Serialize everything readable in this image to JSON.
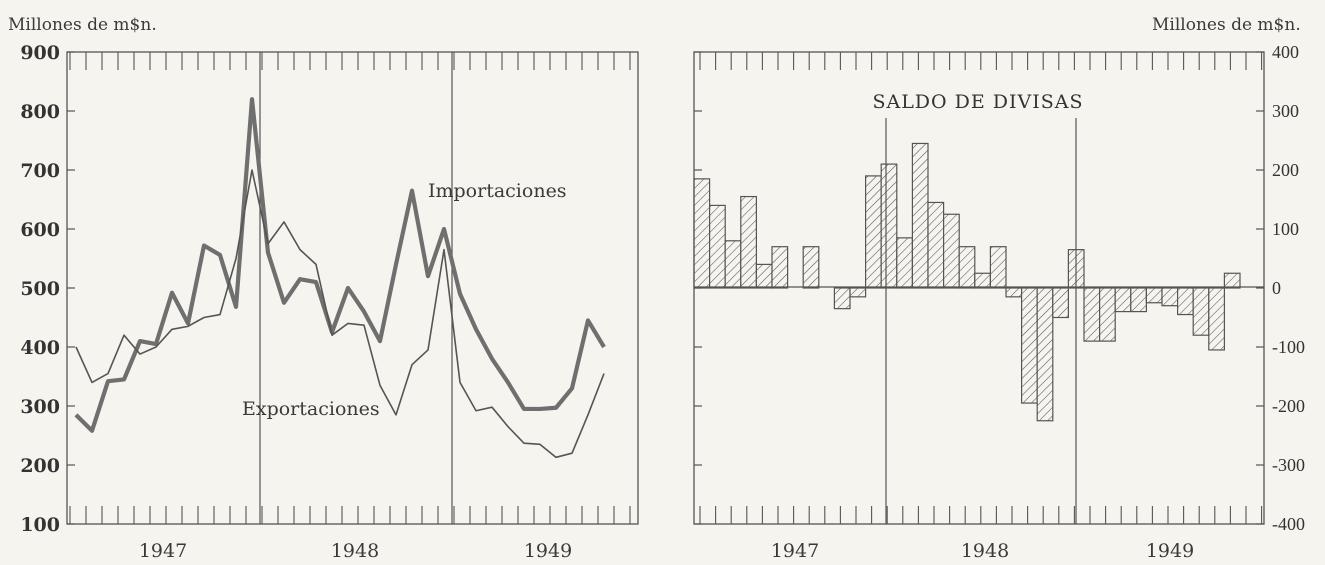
{
  "chart_data": [
    {
      "type": "line",
      "ylabel": "Millones de m$n.",
      "ylim": [
        100,
        900
      ],
      "yticks": [
        "900",
        "800",
        "700",
        "600",
        "500",
        "400",
        "300",
        "200",
        "100"
      ],
      "x_tick_labels": [
        "1947",
        "1948",
        "1949"
      ],
      "x_unit": "month",
      "x_start": "1947-01",
      "grid": false,
      "series": [
        {
          "name": "Importaciones",
          "color": "#6f6f6f",
          "values": [
            285,
            258,
            342,
            345,
            410,
            405,
            492,
            440,
            572,
            556,
            468,
            820,
            560,
            475,
            515,
            510,
            425,
            500,
            460,
            410,
            540,
            665,
            520,
            600,
            490,
            430,
            380,
            340,
            295,
            295,
            297,
            330,
            445,
            400
          ]
        },
        {
          "name": "Exportaciones",
          "color": "#555555",
          "values": [
            400,
            340,
            355,
            420,
            388,
            400,
            430,
            435,
            450,
            455,
            550,
            700,
            575,
            612,
            565,
            540,
            420,
            440,
            437,
            335,
            285,
            370,
            395,
            565,
            340,
            292,
            298,
            265,
            237,
            235,
            213,
            220,
            285,
            355
          ]
        }
      ]
    },
    {
      "type": "bar",
      "title": "SALDO DE DIVISAS",
      "ylabel": "Millones de m$n.",
      "ylim": [
        -400,
        400
      ],
      "yticks": [
        "400",
        "300",
        "200",
        "100",
        "0",
        "-100",
        "-200",
        "-300",
        "-400"
      ],
      "x_tick_labels": [
        "1947",
        "1948",
        "1949"
      ],
      "x_unit": "month",
      "x_start": "1947-01",
      "grid": false,
      "values": [
        185,
        140,
        80,
        155,
        40,
        70,
        0,
        70,
        0,
        -35,
        -15,
        190,
        210,
        85,
        245,
        145,
        125,
        70,
        25,
        70,
        -15,
        -195,
        -225,
        -50,
        65,
        -90,
        -90,
        -40,
        -40,
        -25,
        -30,
        -45,
        -80,
        -105,
        25
      ]
    }
  ]
}
